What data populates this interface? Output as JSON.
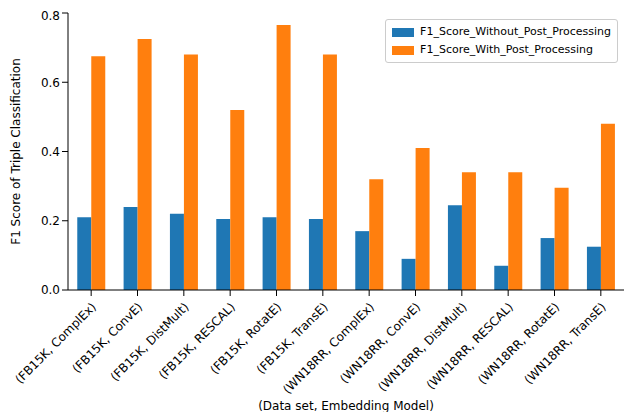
{
  "chart_data": {
    "type": "bar",
    "categories": [
      "(FB15K, ComplEx)",
      "(FB15K, ConvE)",
      "(FB15K, DistMult)",
      "(FB15K, RESCAL)",
      "(FB15K, RotatE)",
      "(FB15K, TransE)",
      "(WN18RR, ComplEx)",
      "(WN18RR, ConvE)",
      "(WN18RR, DistMult)",
      "(WN18RR, RESCAL)",
      "(WN18RR, RotatE)",
      "(WN18RR, TransE)"
    ],
    "series": [
      {
        "name": "F1_Score_Without_Post_Processing",
        "color": "#1f77b4",
        "values": [
          0.21,
          0.24,
          0.22,
          0.205,
          0.21,
          0.205,
          0.17,
          0.09,
          0.245,
          0.07,
          0.15,
          0.125
        ]
      },
      {
        "name": "F1_Score_With_Post_Processing",
        "color": "#ff7f0e",
        "values": [
          0.675,
          0.725,
          0.68,
          0.52,
          0.765,
          0.68,
          0.32,
          0.41,
          0.34,
          0.34,
          0.295,
          0.48
        ]
      }
    ],
    "x_label": "(Data set, Embedding Model)",
    "y_label": "F1 Score of Triple Classification",
    "ylim": [
      0,
      0.8
    ],
    "yticks": [
      {
        "value": 0,
        "label": "0.0"
      },
      0.2,
      0.4,
      0.6,
      0.8
    ],
    "grid": false,
    "legend": "upper right"
  }
}
